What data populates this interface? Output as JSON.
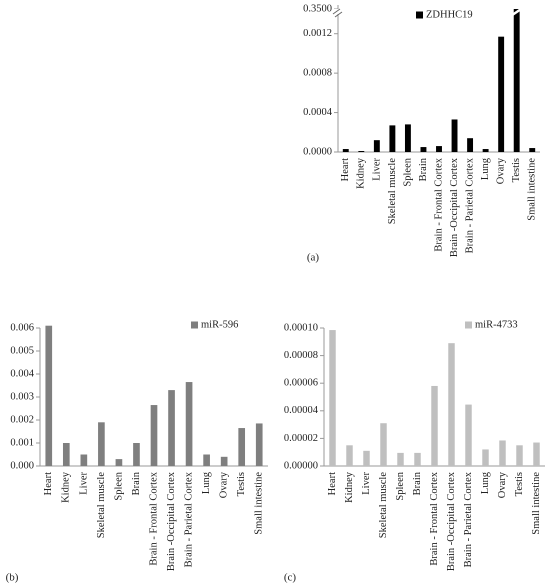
{
  "chart_data": [
    {
      "type": "bar",
      "categories": [
        "Heart",
        "Kidney",
        "Liver",
        "Skeletal muscle",
        "Spleen",
        "Brain",
        "Brain - Frontal Cortex",
        "Brain -Occipital Cortex",
        "Brain - Parietal Cortex",
        "Lung",
        "Ovary",
        "Testis",
        "Small intestine"
      ],
      "series": [
        {
          "name": "ZDHHC19",
          "color": "#000000",
          "values": [
            3e-05,
            1e-05,
            0.00012,
            0.00027,
            0.00028,
            5e-05,
            6e-05,
            0.00033,
            0.00014,
            3e-05,
            0.00117,
            0.35,
            4e-05
          ]
        }
      ],
      "ylim": [
        0,
        0.35
      ],
      "y_break": 0.0014,
      "yticks": [
        {
          "value": 0,
          "label": "0.0000"
        },
        {
          "value": 0.0004,
          "label": "0.0004"
        },
        {
          "value": 0.0008,
          "label": "0.0008"
        },
        {
          "value": 0.0012,
          "label": "0.0012"
        },
        {
          "value": 0.35,
          "label": "0.3500"
        }
      ],
      "caption": "(a)"
    },
    {
      "type": "bar",
      "categories": [
        "Heart",
        "Kidney",
        "Liver",
        "Skeletal muscle",
        "Spleen",
        "Brain",
        "Brain - Frontal Cortex",
        "Brain -Occipital Cortex",
        "Brain - Parietal Cortex",
        "Lung",
        "Ovary",
        "Testis",
        "Small intestine"
      ],
      "series": [
        {
          "name": "miR-596",
          "color": "#7f7f7f",
          "values": [
            0.0061,
            0.001,
            0.0005,
            0.0019,
            0.0003,
            0.001,
            0.00265,
            0.0033,
            0.00365,
            0.0005,
            0.0004,
            0.00165,
            0.00185
          ]
        }
      ],
      "ylim": [
        0,
        0.006
      ],
      "yticks": [
        {
          "value": 0,
          "label": "0.000"
        },
        {
          "value": 0.001,
          "label": "0.001"
        },
        {
          "value": 0.002,
          "label": "0.002"
        },
        {
          "value": 0.003,
          "label": "0.003"
        },
        {
          "value": 0.004,
          "label": "0.004"
        },
        {
          "value": 0.005,
          "label": "0.005"
        },
        {
          "value": 0.006,
          "label": "0.006"
        }
      ],
      "caption": "(b)"
    },
    {
      "type": "bar",
      "categories": [
        "Heart",
        "Kidney",
        "Liver",
        "Skeletal muscle",
        "Spleen",
        "Brain",
        "Brain - Frontal Cortex",
        "Brain -Occipital Cortex",
        "Brain - Parietal Cortex",
        "Lung",
        "Ovary",
        "Testis",
        "Small intestine"
      ],
      "series": [
        {
          "name": "miR-4733",
          "color": "#bfbfbf",
          "values": [
            9.85e-05,
            1.5e-05,
            1.1e-05,
            3.1e-05,
            9.5e-06,
            9.5e-06,
            5.8e-05,
            8.9e-05,
            4.45e-05,
            1.2e-05,
            1.85e-05,
            1.5e-05,
            1.7e-05
          ]
        }
      ],
      "ylim": [
        0,
        0.0001
      ],
      "yticks": [
        {
          "value": 0,
          "label": "0.00000"
        },
        {
          "value": 2e-05,
          "label": "0.00002"
        },
        {
          "value": 4e-05,
          "label": "0.00004"
        },
        {
          "value": 6e-05,
          "label": "0.00006"
        },
        {
          "value": 8e-05,
          "label": "0.00008"
        },
        {
          "value": 0.0001,
          "label": "0.00010"
        }
      ],
      "caption": "(c)"
    }
  ]
}
